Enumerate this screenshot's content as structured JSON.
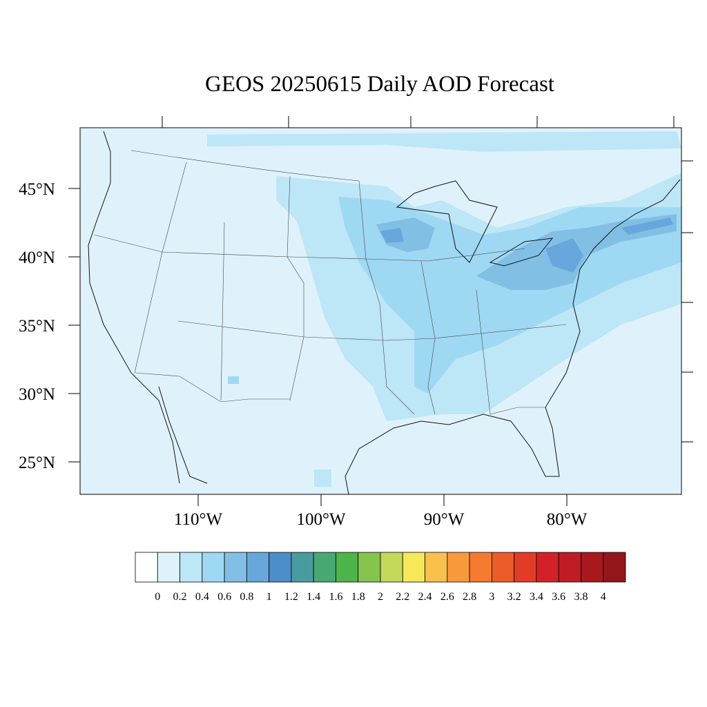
{
  "title": "GEOS 20250615 Daily AOD Forecast",
  "lat_labels": [
    "45°N",
    "40°N",
    "35°N",
    "30°N",
    "25°N"
  ],
  "lon_labels": [
    "110°W",
    "100°W",
    "90°W",
    "80°W"
  ],
  "colorbar": {
    "labels": [
      "0",
      "0.2",
      "0.4",
      "0.6",
      "0.8",
      "1",
      "1.2",
      "1.4",
      "1.6",
      "1.8",
      "2",
      "2.2",
      "2.4",
      "2.6",
      "2.8",
      "3",
      "3.2",
      "3.4",
      "3.6",
      "3.8",
      "4"
    ],
    "colors": [
      "#ffffff",
      "#dff2fb",
      "#bde6f7",
      "#9fd8f3",
      "#82bfe5",
      "#68a7dc",
      "#4b8ec9",
      "#4a9ba0",
      "#47a873",
      "#4cb44a",
      "#86c54d",
      "#c4d85a",
      "#f7e85a",
      "#f9c04c",
      "#f89a3c",
      "#f47a30",
      "#ec5b2a",
      "#e23b28",
      "#d42129",
      "#bf1c26",
      "#a9181f",
      "#93161b"
    ]
  }
}
